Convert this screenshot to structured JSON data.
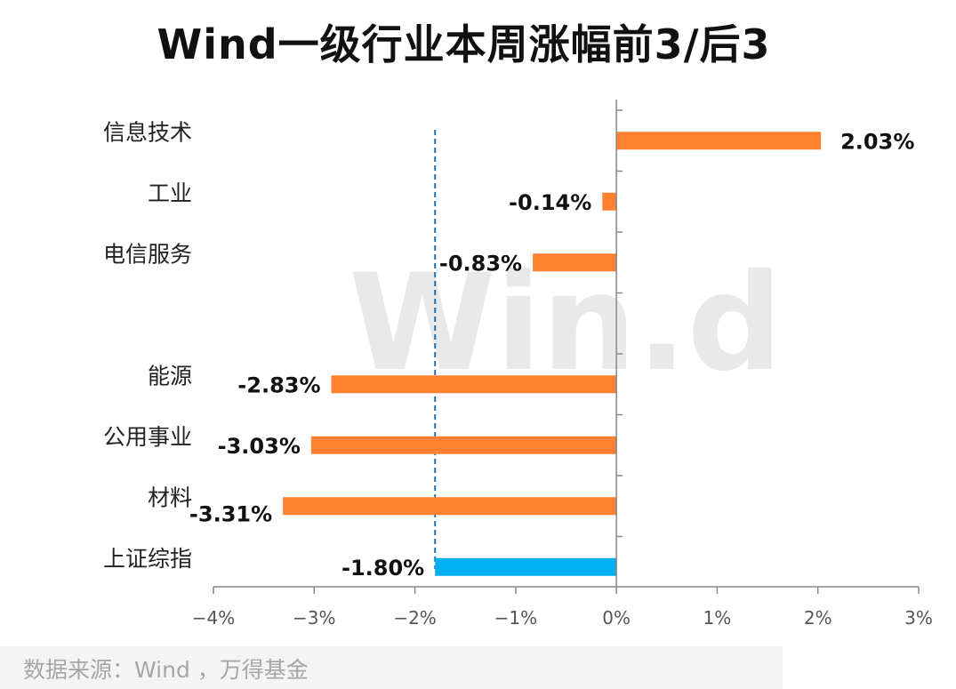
{
  "title": "Wind一级行业本周涨幅前3/后3",
  "source": "数据来源：Wind ，万得基金",
  "watermark": "Win.d",
  "chart_data": {
    "type": "bar",
    "orientation": "horizontal",
    "title": "Wind一级行业本周涨幅前3/后3",
    "categories": [
      "信息技术",
      "工业",
      "电信服务",
      "",
      "能源",
      "公用事业",
      "材料",
      "上证综指"
    ],
    "values": [
      2.03,
      -0.14,
      -0.83,
      null,
      -2.83,
      -3.03,
      -3.31,
      -1.8
    ],
    "value_labels": [
      "2.03%",
      "-0.14%",
      "-0.83%",
      "",
      "-2.83%",
      "-3.03%",
      "-3.31%",
      "-1.80%"
    ],
    "bar_colors": [
      "#ff8030",
      "#ff8030",
      "#ff8030",
      "",
      "#ff8030",
      "#ff8030",
      "#ff8030",
      "#00b0f0"
    ],
    "xlim": [
      -4,
      3
    ],
    "x_ticks": [
      -4,
      -3,
      -2,
      -1,
      0,
      1,
      2,
      3
    ],
    "x_tick_labels": [
      "−4%",
      "−3%",
      "−2%",
      "−1%",
      "0%",
      "1%",
      "2%",
      "3%"
    ],
    "reference_line": {
      "value": -1.8,
      "style": "dashed",
      "color": "#1f6fb5"
    },
    "grid": false,
    "legend": "none"
  }
}
